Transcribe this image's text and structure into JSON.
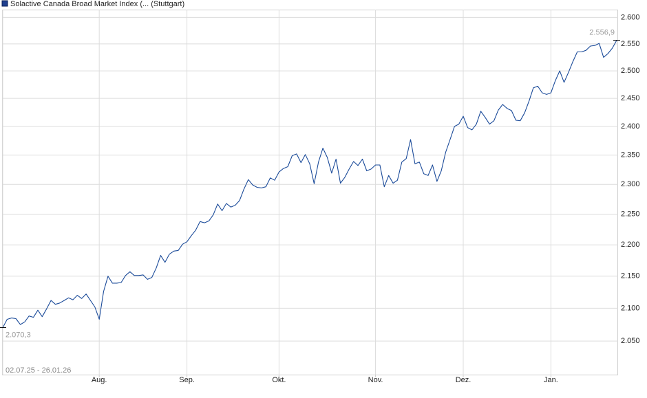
{
  "chart_data": {
    "type": "line",
    "legend": "Solactive Canada Broad Market Index (... (Stuttgart)",
    "date_range": "02.07.25 - 26.01.26",
    "color": "#1a4a99",
    "log_scale": true,
    "grid": true,
    "ylim": [
      2000,
      2615
    ],
    "yticks": [
      {
        "value": 2050,
        "label": "2.050"
      },
      {
        "value": 2100,
        "label": "2.100"
      },
      {
        "value": 2150,
        "label": "2.150"
      },
      {
        "value": 2200,
        "label": "2.200"
      },
      {
        "value": 2250,
        "label": "2.250"
      },
      {
        "value": 2300,
        "label": "2.300"
      },
      {
        "value": 2350,
        "label": "2.350"
      },
      {
        "value": 2400,
        "label": "2.400"
      },
      {
        "value": 2450,
        "label": "2.450"
      },
      {
        "value": 2500,
        "label": "2.500"
      },
      {
        "value": 2550,
        "label": "2.550"
      },
      {
        "value": 2600,
        "label": "2.600"
      }
    ],
    "xlim": [
      0,
      140
    ],
    "xticks": [
      {
        "value": 22,
        "label": "Aug."
      },
      {
        "value": 42,
        "label": "Sep."
      },
      {
        "value": 63,
        "label": "Okt."
      },
      {
        "value": 85,
        "label": "Nov."
      },
      {
        "value": 105,
        "label": "Dez."
      },
      {
        "value": 125,
        "label": "Jan."
      }
    ],
    "values": [
      2070.3,
      2083,
      2085,
      2084,
      2075,
      2079,
      2088,
      2086,
      2097,
      2087,
      2099,
      2112,
      2106,
      2108,
      2112,
      2116,
      2113,
      2120,
      2115,
      2122,
      2112,
      2102,
      2083,
      2126,
      2150,
      2139,
      2139,
      2140,
      2151,
      2157,
      2151,
      2151,
      2152,
      2145,
      2148,
      2163,
      2183,
      2172,
      2185,
      2190,
      2191,
      2201,
      2205,
      2215,
      2224,
      2238,
      2236,
      2239,
      2249,
      2267,
      2256,
      2268,
      2262,
      2265,
      2273,
      2292,
      2308,
      2299,
      2295,
      2294,
      2296,
      2311,
      2307,
      2321,
      2327,
      2330,
      2349,
      2352,
      2337,
      2351,
      2335,
      2301,
      2338,
      2362,
      2346,
      2319,
      2343,
      2302,
      2312,
      2326,
      2339,
      2332,
      2343,
      2323,
      2326,
      2333,
      2333,
      2296,
      2315,
      2302,
      2307,
      2338,
      2344,
      2377,
      2335,
      2338,
      2318,
      2315,
      2333,
      2305,
      2323,
      2355,
      2377,
      2400,
      2404,
      2418,
      2398,
      2394,
      2404,
      2427,
      2416,
      2404,
      2410,
      2429,
      2439,
      2432,
      2428,
      2411,
      2410,
      2424,
      2445,
      2469,
      2472,
      2460,
      2457,
      2460,
      2482,
      2500,
      2479,
      2497,
      2517,
      2535,
      2535,
      2538,
      2546,
      2547,
      2551,
      2525,
      2532,
      2542,
      2556.9
    ],
    "value_labels": [
      "2.070,3",
      null,
      null,
      null,
      null,
      null,
      null,
      null,
      null,
      null,
      null,
      null,
      null,
      null,
      null,
      null,
      null,
      null,
      null,
      null,
      null,
      null,
      null,
      null,
      null,
      null,
      null,
      null,
      null,
      null,
      null,
      null,
      null,
      null,
      null,
      null,
      null,
      null,
      null,
      null,
      null,
      null,
      null,
      null,
      null,
      null,
      null,
      null,
      null,
      null,
      null,
      null,
      null,
      null,
      null,
      null,
      null,
      null,
      null,
      null,
      null,
      null,
      null,
      null,
      null,
      null,
      null,
      null,
      null,
      null,
      null,
      null,
      null,
      null,
      null,
      null,
      null,
      null,
      null,
      null,
      null,
      null,
      null,
      null,
      null,
      null,
      null,
      null,
      null,
      null,
      null,
      null,
      null,
      null,
      null,
      null,
      null,
      null,
      null,
      null,
      null,
      null,
      null,
      null,
      null,
      null,
      null,
      null,
      null,
      null,
      null,
      null,
      null,
      null,
      null,
      null,
      null,
      null,
      null,
      null,
      null,
      null,
      null,
      null,
      null,
      null,
      null,
      null,
      null,
      null,
      null,
      null,
      null,
      null,
      null,
      null,
      null,
      null,
      null,
      null,
      "2.556,9"
    ]
  }
}
